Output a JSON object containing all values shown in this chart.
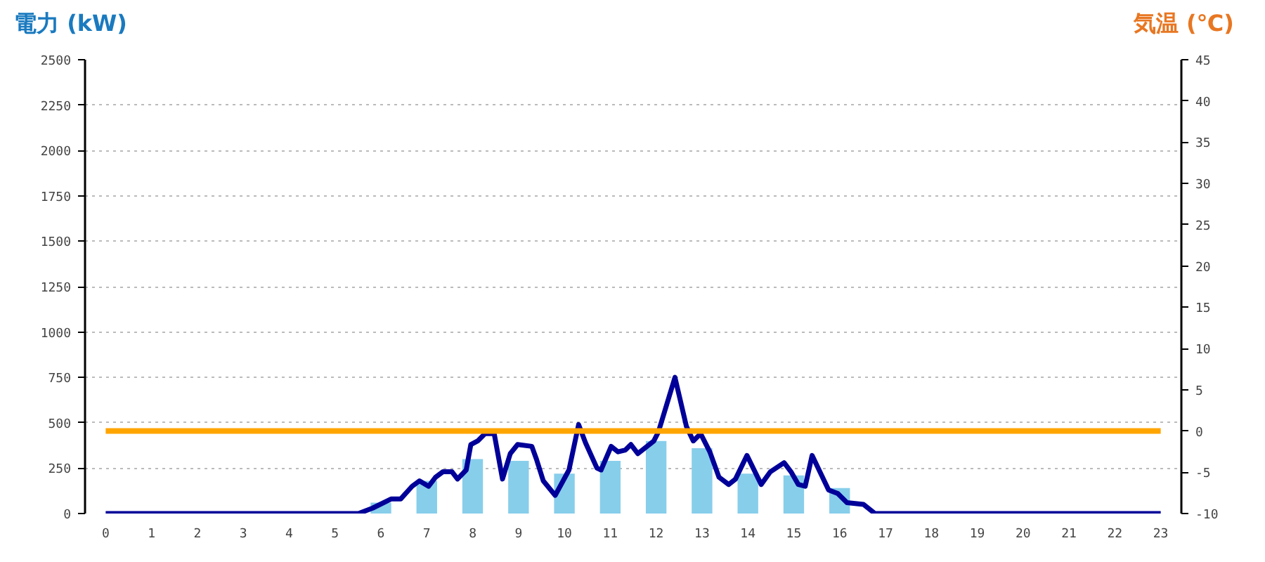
{
  "chart_data": {
    "type": "bar",
    "ylabel": "電力 (kW)",
    "y2label": "気温 (℃)",
    "x": [
      0,
      1,
      2,
      3,
      4,
      5,
      6,
      7,
      8,
      9,
      10,
      11,
      12,
      13,
      14,
      15,
      16,
      17,
      18,
      19,
      20,
      21,
      22,
      23
    ],
    "xlim": [
      -0.45,
      23.45
    ],
    "xticks": [
      0,
      1,
      2,
      3,
      4,
      5,
      6,
      7,
      8,
      9,
      10,
      11,
      12,
      13,
      14,
      15,
      16,
      17,
      18,
      19,
      20,
      21,
      22,
      23
    ],
    "ylim": [
      0,
      2500
    ],
    "yticks": [
      0,
      250,
      500,
      750,
      1000,
      1250,
      1500,
      1750,
      2000,
      2250,
      2500
    ],
    "y2lim": [
      -10,
      45
    ],
    "y2ticks": [
      -10,
      -5,
      0,
      5,
      10,
      15,
      20,
      25,
      30,
      35,
      40,
      45
    ],
    "grid": "y",
    "marker": "none",
    "line_style": "solid",
    "series": [
      {
        "color": "#87ceeb",
        "values": [
          0,
          0,
          0,
          0,
          0,
          0,
          60,
          180,
          300,
          290,
          220,
          290,
          400,
          360,
          220,
          210,
          140,
          0,
          0,
          0,
          0,
          0,
          0,
          0
        ]
      },
      {
        "type": "line",
        "color": "#000099",
        "x": [
          0,
          5.51,
          5.82,
          6.22,
          6.43,
          6.68,
          6.84,
          7.04,
          7.19,
          7.35,
          7.55,
          7.67,
          7.86,
          7.96,
          8.11,
          8.27,
          8.47,
          8.65,
          8.82,
          8.98,
          9.29,
          9.39,
          9.54,
          9.8,
          10.1,
          10.31,
          10.46,
          10.71,
          10.8,
          11.02,
          11.17,
          11.33,
          11.45,
          11.6,
          11.95,
          12.05,
          12.41,
          12.66,
          12.81,
          12.97,
          13.17,
          13.37,
          13.58,
          13.73,
          13.98,
          14.29,
          14.49,
          14.79,
          14.94,
          15.1,
          15.25,
          15.4,
          15.76,
          15.96,
          16.16,
          16.52,
          16.77,
          23
        ],
        "values": [
          0,
          0,
          30,
          80,
          80,
          150,
          180,
          150,
          200,
          230,
          230,
          190,
          240,
          380,
          400,
          440,
          440,
          190,
          330,
          380,
          370,
          300,
          180,
          100,
          240,
          490,
          390,
          250,
          240,
          370,
          340,
          350,
          380,
          330,
          400,
          450,
          750,
          480,
          400,
          440,
          340,
          200,
          160,
          190,
          320,
          160,
          230,
          280,
          230,
          160,
          150,
          320,
          130,
          110,
          60,
          50,
          0,
          0
        ]
      },
      {
        "type": "line",
        "axis": "y2",
        "color": "#ffa500",
        "values": [
          0,
          0,
          0,
          0,
          0,
          0,
          0,
          0,
          0,
          0,
          0,
          0,
          0,
          0,
          0,
          0,
          0,
          0,
          0,
          0,
          0,
          0,
          0,
          0
        ]
      }
    ]
  }
}
